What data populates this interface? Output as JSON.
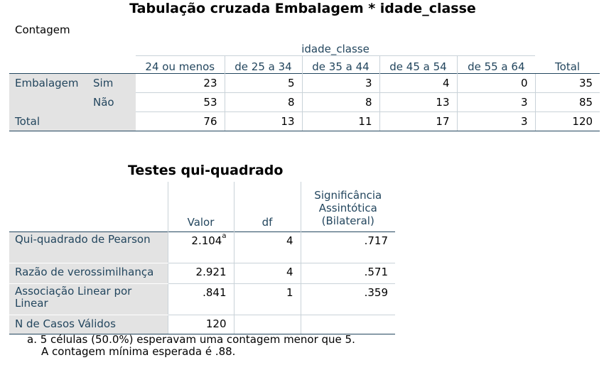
{
  "crosstab": {
    "title": "Tabulação cruzada Embalagem * idade_classe",
    "subtitle": "Contagem",
    "group_label": "idade_classe",
    "columns": [
      "24 ou menos",
      "de 25 a 34",
      "de 35 a 44",
      "de 45 a 54",
      "de 55 a 64"
    ],
    "total_label": "Total",
    "row_var": "Embalagem",
    "rows": [
      {
        "label": "Sim",
        "values": [
          "23",
          "5",
          "3",
          "4",
          "0"
        ],
        "total": "35"
      },
      {
        "label": "Não",
        "values": [
          "53",
          "8",
          "8",
          "13",
          "3"
        ],
        "total": "85"
      }
    ],
    "total_row": {
      "label": "Total",
      "values": [
        "76",
        "13",
        "11",
        "17",
        "3"
      ],
      "total": "120"
    }
  },
  "chisq": {
    "title": "Testes qui-quadrado",
    "headers": {
      "valor": "Valor",
      "df": "df",
      "sig": "Significância Assintótica (Bilateral)"
    },
    "rows": [
      {
        "label": "Qui-quadrado de Pearson",
        "valor": "2.104",
        "sup": "a",
        "df": "4",
        "sig": ".717"
      },
      {
        "label": "Razão de verossimilhança",
        "valor": "2.921",
        "df": "4",
        "sig": ".571"
      },
      {
        "label": "Associação Linear por Linear",
        "valor": ".841",
        "df": "1",
        "sig": ".359"
      },
      {
        "label": "N de Casos Válidos",
        "valor": "120",
        "df": "",
        "sig": ""
      }
    ],
    "footnote_line1": "a. 5 células (50.0%) esperavam uma contagem menor que 5.",
    "footnote_line2": "A contagem mínima esperada é .88."
  }
}
